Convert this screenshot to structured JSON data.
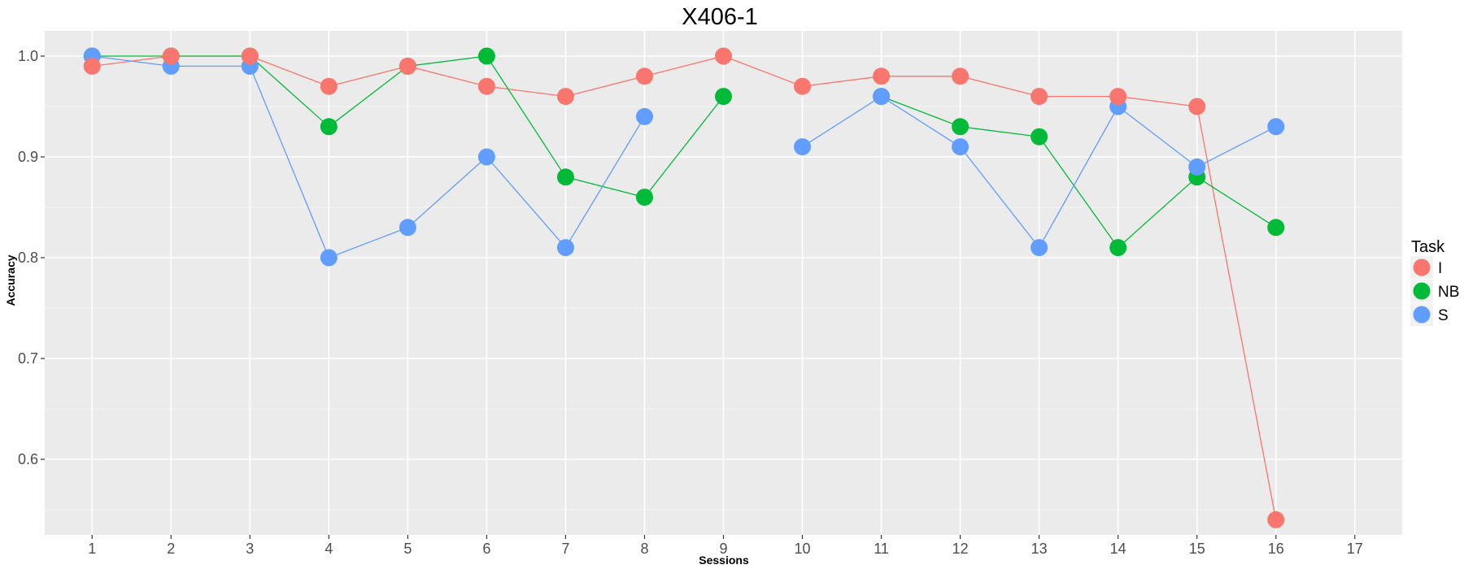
{
  "chart_data": {
    "type": "line",
    "title": "X406-1",
    "xlabel": "Sessions",
    "ylabel": "Accuracy",
    "x_ticks": [
      1,
      2,
      3,
      4,
      5,
      6,
      7,
      8,
      9,
      10,
      11,
      12,
      13,
      14,
      15,
      16,
      17
    ],
    "y_ticks": [
      0.6,
      0.7,
      0.8,
      0.9,
      1.0
    ],
    "y_tick_labels": [
      "0.6",
      "0.7",
      "0.8",
      "0.9",
      "1.0"
    ],
    "xlim": [
      0.4,
      17.6
    ],
    "ylim": [
      0.525,
      1.025
    ],
    "grid": true,
    "legend": {
      "title": "Task",
      "position": "right"
    },
    "series": [
      {
        "name": "I",
        "color": "#F8766D",
        "points": [
          [
            1,
            0.99
          ],
          [
            2,
            1.0
          ],
          [
            3,
            1.0
          ],
          [
            4,
            0.97
          ],
          [
            5,
            0.99
          ],
          [
            6,
            0.97
          ],
          [
            7,
            0.96
          ],
          [
            8,
            0.98
          ],
          [
            9,
            1.0
          ],
          [
            10,
            0.97
          ],
          [
            11,
            0.98
          ],
          [
            12,
            0.98
          ],
          [
            13,
            0.96
          ],
          [
            14,
            0.96
          ],
          [
            15,
            0.95
          ],
          [
            16,
            0.54
          ]
        ]
      },
      {
        "name": "NB",
        "color": "#00BA38",
        "points": [
          [
            1,
            1.0
          ],
          [
            2,
            1.0
          ],
          [
            3,
            1.0
          ],
          [
            4,
            0.93
          ],
          [
            5,
            0.99
          ],
          [
            6,
            1.0
          ],
          [
            7,
            0.88
          ],
          [
            8,
            0.86
          ],
          [
            9,
            0.96
          ],
          [
            11,
            0.96
          ],
          [
            12,
            0.93
          ],
          [
            13,
            0.92
          ],
          [
            14,
            0.81
          ],
          [
            15,
            0.88
          ],
          [
            16,
            0.83
          ]
        ]
      },
      {
        "name": "S",
        "color": "#619CFF",
        "points": [
          [
            1,
            1.0
          ],
          [
            2,
            0.99
          ],
          [
            3,
            0.99
          ],
          [
            4,
            0.8
          ],
          [
            5,
            0.83
          ],
          [
            6,
            0.9
          ],
          [
            7,
            0.81
          ],
          [
            8,
            0.94
          ],
          [
            10,
            0.91
          ],
          [
            11,
            0.96
          ],
          [
            12,
            0.91
          ],
          [
            13,
            0.81
          ],
          [
            14,
            0.95
          ],
          [
            15,
            0.89
          ],
          [
            16,
            0.93
          ]
        ]
      }
    ]
  }
}
